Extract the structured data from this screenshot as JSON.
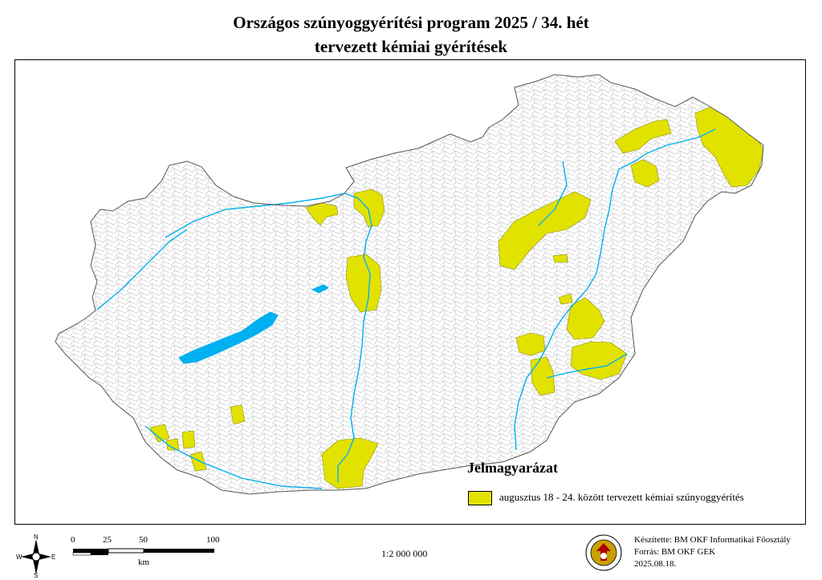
{
  "title": {
    "line1": "Országos szúnyoggyérítési program 2025 / 34. hét",
    "line2": "tervezett kémiai gyérítések"
  },
  "legend": {
    "heading": "Jelmagyarázat",
    "item_label": "augusztus 18 - 24. között tervezett kémiai szúnyoggyérítés",
    "item_color": "#e2e200"
  },
  "colors": {
    "treated_area": "#e2e200",
    "water": "#00b0f0",
    "border": "#000000",
    "municipality_lines": "#bcbcbc"
  },
  "compass": {
    "n": "N",
    "s": "S",
    "e": "E",
    "w": "W"
  },
  "scale": {
    "ticks": [
      "0",
      "25",
      "50",
      "100"
    ],
    "unit": "km",
    "ratio": "1:2 000 000"
  },
  "credits": {
    "made_by": "Készítette: BM OKF Informatikai Főosztály",
    "source": "Forrás: BM OKF GEK",
    "date": "2025.08.18."
  }
}
